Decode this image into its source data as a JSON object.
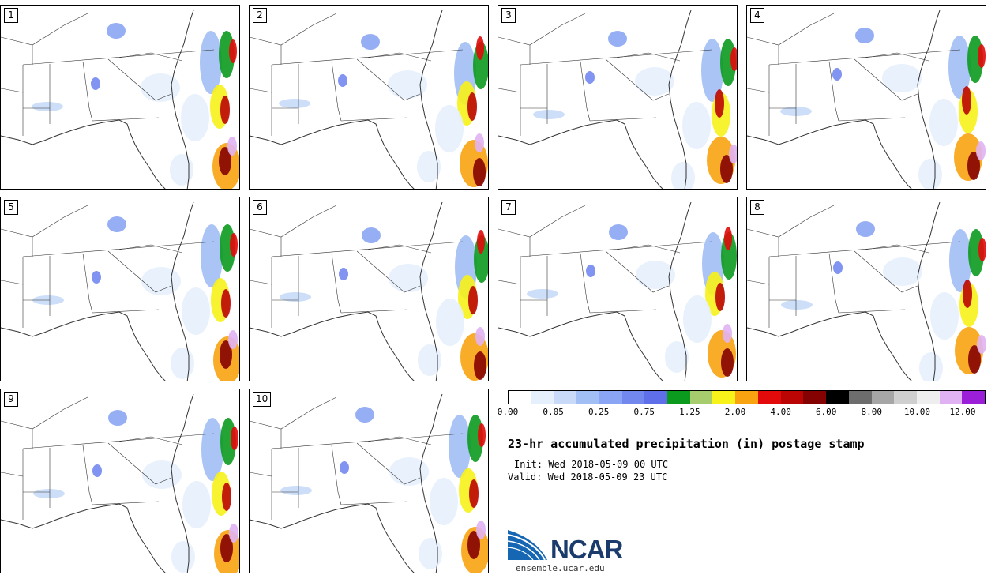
{
  "panels": [
    {
      "label": "1"
    },
    {
      "label": "2"
    },
    {
      "label": "3"
    },
    {
      "label": "4"
    },
    {
      "label": "5"
    },
    {
      "label": "6"
    },
    {
      "label": "7"
    },
    {
      "label": "8"
    },
    {
      "label": "9"
    },
    {
      "label": "10"
    }
  ],
  "colorbar": {
    "colors": [
      "#ffffff",
      "#e6f0fc",
      "#c8daf8",
      "#a1bef5",
      "#8aa5f3",
      "#7388ef",
      "#5f6fe9",
      "#0b9a1e",
      "#a7cc6e",
      "#f7f21a",
      "#f8a30f",
      "#e20a0a",
      "#bb0505",
      "#850202",
      "#000000",
      "#6d6d6d",
      "#a6a6a6",
      "#cfcfcf",
      "#eeeeee",
      "#e0b2f3",
      "#9b1fd8"
    ],
    "tick_labels": [
      "0.00",
      "0.05",
      "0.25",
      "0.75",
      "1.25",
      "2.00",
      "4.00",
      "6.00",
      "8.00",
      "10.00",
      "12.00"
    ]
  },
  "title": "23-hr accumulated precipitation (in) postage stamp",
  "init": "Init: Wed 2018-05-09 00 UTC",
  "valid": "Valid: Wed 2018-05-09 23 UTC",
  "logo": {
    "text": "NCAR",
    "url": "ensemble.ucar.edu"
  }
}
